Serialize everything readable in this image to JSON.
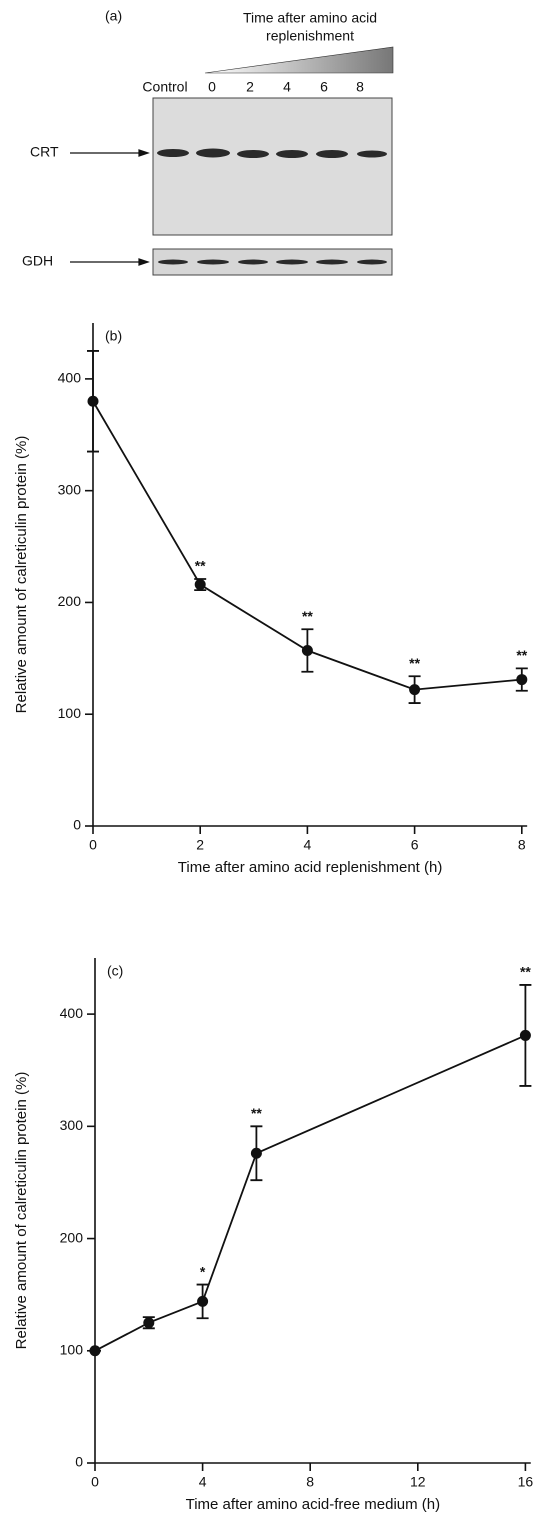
{
  "blot": {
    "label": "(a)",
    "title": [
      "Time after amino acid",
      "replenishment"
    ],
    "lanes": [
      "Control",
      "0",
      "2",
      "4",
      "6",
      "8"
    ],
    "rows": [
      "CRT",
      "GDH"
    ]
  },
  "chart_data": [
    {
      "type": "line",
      "label": "(b)",
      "x_label": "Time after amino acid replenishment (h)",
      "y_label": "Relative amount of calreticulin protein (%)",
      "x": [
        0,
        2,
        4,
        6,
        8
      ],
      "xlim": [
        0,
        8.1
      ],
      "xticks": [
        0,
        2,
        4,
        6,
        8
      ],
      "ylim": [
        0,
        450
      ],
      "yticks": [
        0,
        100,
        200,
        300,
        400
      ],
      "series": [
        {
          "color": "#111111",
          "values": [
            380,
            216,
            157,
            122,
            131
          ],
          "errors": [
            45,
            5,
            19,
            12,
            10
          ],
          "value_annotations": [
            null,
            "**",
            "**",
            "**",
            "**"
          ]
        }
      ]
    },
    {
      "type": "line",
      "label": "(c)",
      "x_label": "Time after amino acid-free medium (h)",
      "y_label": "Relative amount of calreticulin protein (%)",
      "x": [
        0,
        2,
        4,
        6,
        16
      ],
      "xlim": [
        0,
        16.2
      ],
      "xticks": [
        0,
        4,
        8,
        12,
        16
      ],
      "ylim": [
        0,
        450
      ],
      "yticks": [
        0,
        100,
        200,
        300,
        400
      ],
      "series": [
        {
          "color": "#111111",
          "values": [
            100,
            125,
            144,
            276,
            381
          ],
          "errors": [
            0,
            5,
            15,
            24,
            45
          ],
          "value_annotations": [
            null,
            null,
            "*",
            "**",
            "**"
          ]
        }
      ]
    }
  ]
}
